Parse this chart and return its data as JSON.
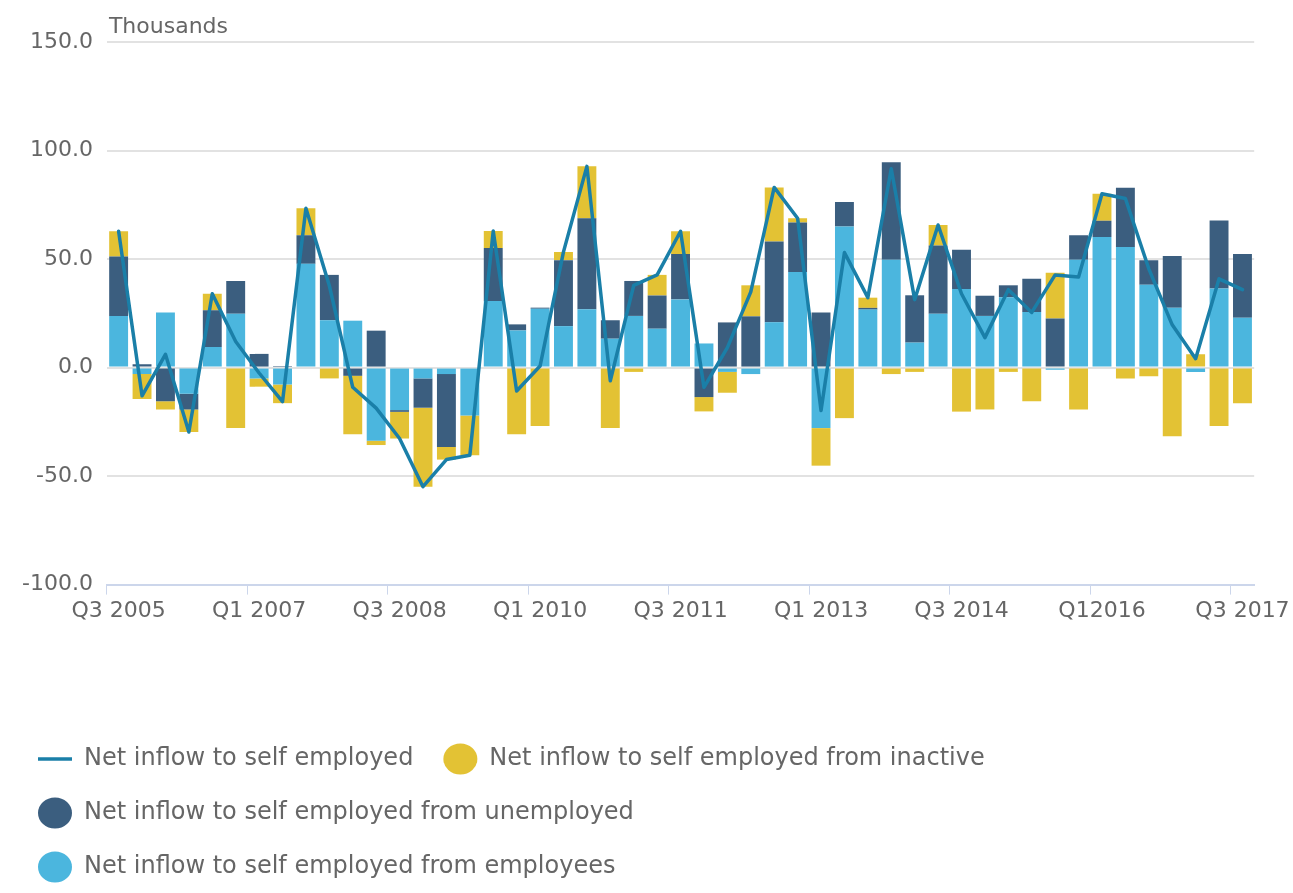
{
  "chart_data": {
    "type": "bar",
    "stacked": true,
    "ylabel": "Thousands",
    "categories": [
      "Q3 2005",
      null,
      null,
      null,
      null,
      null,
      "Q1 2007",
      null,
      null,
      null,
      null,
      null,
      "Q3 2008",
      null,
      null,
      null,
      null,
      null,
      "Q1 2010",
      null,
      null,
      null,
      null,
      null,
      "Q3 2011",
      null,
      null,
      null,
      null,
      null,
      "Q1 2013",
      null,
      null,
      null,
      null,
      null,
      "Q3 2014",
      null,
      null,
      null,
      null,
      null,
      "Q12016",
      null,
      null,
      null,
      null,
      null,
      "Q3 2017"
    ],
    "series": [
      {
        "name": "Net inflow to self employed",
        "type": "line",
        "color": "#1a7fa8",
        "values": [
          62.8,
          -13,
          6.1,
          -29.7,
          34,
          12,
          -2.5,
          -15.7,
          73.4,
          37.7,
          -9.1,
          -18.7,
          -32.7,
          -54.9,
          -42.4,
          -40.4,
          62.9,
          -10.8,
          0.7,
          53.3,
          92.7,
          -6.1,
          37.9,
          42.7,
          62.8,
          -9.1,
          9.2,
          34.9,
          83,
          68.8,
          -19.8,
          53,
          32.2,
          91.6,
          31.3,
          65.7,
          34,
          13.8,
          35.9,
          25.4,
          42.7,
          41.7,
          80.1,
          77.9,
          45.5,
          19.7,
          4.1,
          40.9,
          35.9
        ]
      },
      {
        "name": "Net inflow to self employed from employees",
        "color": "#4bb6de",
        "values": [
          23.8,
          -3,
          25.4,
          -12.1,
          9.5,
          24.8,
          -5,
          -7.8,
          47.8,
          21.8,
          21.6,
          -33.7,
          -19.6,
          -5,
          -3,
          -22.1,
          30.7,
          17.1,
          27.1,
          19.1,
          26.9,
          13.3,
          23.8,
          17.9,
          31.4,
          11.1,
          -2,
          -3,
          20.9,
          44,
          -27.9,
          65,
          26.7,
          49.7,
          11.5,
          24.8,
          36.2,
          23.8,
          32.4,
          25.6,
          -1,
          49.7,
          60.1,
          55.5,
          38.2,
          27.6,
          -2,
          36.4,
          22.9
        ]
      },
      {
        "name": "Net inflow to self employed from unemployed",
        "color": "#3b5e7f",
        "values": [
          27.4,
          1.5,
          -15.5,
          -7.2,
          16.9,
          15.1,
          6.3,
          0.7,
          13.2,
          20.9,
          -3.8,
          17,
          -0.8,
          -13.5,
          -33.6,
          null,
          24.4,
          2.8,
          0.5,
          30.4,
          41.9,
          8.5,
          16.1,
          15.3,
          20.9,
          -13.6,
          20.8,
          23.6,
          37.2,
          22.8,
          25.4,
          11.3,
          0.8,
          44.9,
          21.8,
          31.4,
          18.1,
          9.3,
          5.5,
          15.3,
          22.6,
          11.3,
          7.5,
          27.4,
          11.3,
          23.8,
          null,
          31.4,
          29.4
        ]
      },
      {
        "name": "Net inflow to self employed from inactive",
        "color": "#e3c234",
        "values": [
          11.6,
          -11.5,
          -3.8,
          -10.4,
          7.6,
          -27.9,
          -3.8,
          -8.6,
          12.4,
          -5,
          -26.9,
          -2,
          -12.3,
          -36.4,
          -5.8,
          -18.3,
          7.8,
          -30.7,
          -26.9,
          3.8,
          23.9,
          -27.9,
          -2,
          9.5,
          10.5,
          -6.6,
          -9.6,
          14.3,
          24.9,
          2,
          -17.3,
          -23.3,
          4.7,
          -3,
          -2,
          9.5,
          -20.3,
          -19.3,
          -2,
          -15.5,
          21.1,
          -19.3,
          12.5,
          -5,
          -4,
          -31.7,
          6.1,
          -26.9,
          -16.4
        ]
      }
    ],
    "ylim": [
      -100,
      150
    ],
    "yticks": [
      {
        "value": -100,
        "label": "-100.0"
      },
      {
        "value": -50,
        "label": "-50.0"
      },
      {
        "value": 0,
        "label": "0.0"
      },
      {
        "value": 50,
        "label": "50.0"
      },
      {
        "value": 100,
        "label": "100.0"
      },
      {
        "value": 150,
        "label": "150.0"
      }
    ],
    "grid": "y",
    "legend": "bottom",
    "marker": "none",
    "line_style": "solid"
  }
}
